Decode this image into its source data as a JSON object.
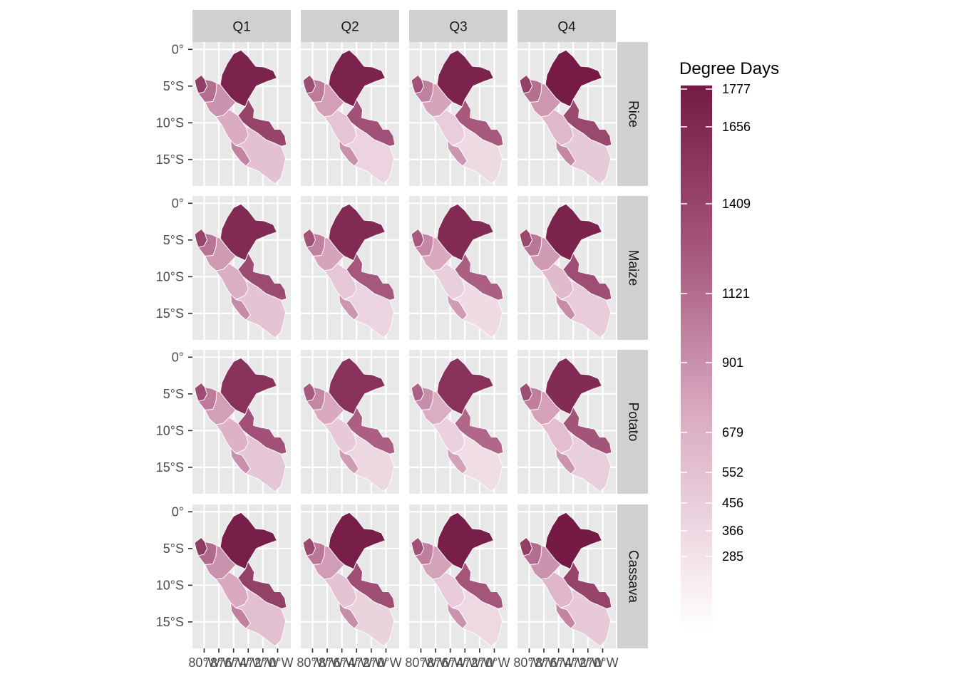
{
  "chart_data": {
    "type": "choropleth-facet",
    "columns": [
      "Q1",
      "Q2",
      "Q3",
      "Q4"
    ],
    "rows": [
      "Rice",
      "Maize",
      "Potato",
      "Cassava"
    ],
    "y_ticks": [
      "0°",
      "5°S",
      "10°S",
      "15°S"
    ],
    "x_ticks": [
      "80°W",
      "78°W",
      "76°W",
      "74°W",
      "72°W",
      "70°W"
    ],
    "legend": {
      "title": "Degree Days",
      "breaks": [
        "1777",
        "1656",
        "1409",
        "1121",
        "901",
        "679",
        "552",
        "456",
        "366",
        "285"
      ],
      "low_color": "#ffffff",
      "high_color": "#741a45"
    },
    "panel_background": "#e8e8e8",
    "grid_color": "#ffffff",
    "strip_background": "#d0d0d0"
  }
}
